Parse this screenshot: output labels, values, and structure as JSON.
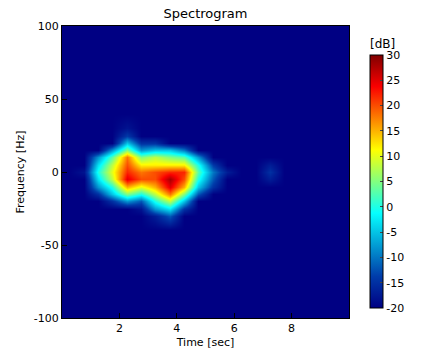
{
  "chart_data": {
    "type": "heatmap",
    "title": "Spectrogram",
    "x_label": "Time [sec]",
    "y_label": "Frequency [Hz]",
    "x": [
      0.25,
      0.75,
      1.25,
      1.75,
      2.25,
      2.75,
      3.25,
      3.75,
      4.25,
      4.75,
      5.25,
      5.75,
      6.25,
      6.75,
      7.25,
      7.75,
      8.25,
      8.75,
      9.25,
      9.75
    ],
    "y": [
      -100,
      -80,
      -60,
      -40,
      -30,
      -25,
      -20,
      -15,
      -10,
      -5,
      0,
      5,
      10,
      15,
      20,
      25,
      30,
      40,
      60,
      80,
      100
    ],
    "cells": [
      [
        -20,
        -20,
        -20,
        -20,
        -20,
        -20,
        -20,
        -20,
        -20,
        -20,
        -20,
        -20,
        -20,
        -20,
        -20,
        -20,
        -20,
        -20,
        -20,
        -20
      ],
      [
        -20,
        -20,
        -20,
        -20,
        -20,
        -20,
        -20,
        -20,
        -20,
        -20,
        -20,
        -20,
        -20,
        -20,
        -20,
        -20,
        -20,
        -20,
        -20,
        -20
      ],
      [
        -20,
        -20,
        -20,
        -20,
        -20,
        -20,
        -20,
        -20,
        -20,
        -20,
        -20,
        -20,
        -20,
        -20,
        -20,
        -20,
        -20,
        -20,
        -20,
        -20
      ],
      [
        -20,
        -20,
        -20,
        -20,
        -20,
        -20,
        -20,
        -20,
        -20,
        -20,
        -20,
        -20,
        -20,
        -20,
        -20,
        -20,
        -20,
        -20,
        -20,
        -20
      ],
      [
        -20,
        -20,
        -20,
        -20,
        -20,
        -20,
        -17,
        -12,
        -20,
        -20,
        -20,
        -20,
        -20,
        -20,
        -20,
        -20,
        -20,
        -20,
        -20,
        -20
      ],
      [
        -20,
        -20,
        -20,
        -20,
        -20,
        -18,
        -8,
        -3,
        -15,
        -20,
        -20,
        -20,
        -20,
        -20,
        -20,
        -20,
        -20,
        -20,
        -20,
        -20
      ],
      [
        -20,
        -20,
        -20,
        -15,
        -8,
        -12,
        0,
        8,
        -5,
        -20,
        -20,
        -20,
        -20,
        -20,
        -20,
        -20,
        -20,
        -20,
        -20,
        -20
      ],
      [
        -20,
        -20,
        -15,
        -5,
        5,
        0,
        8,
        18,
        5,
        -12,
        -20,
        -20,
        -20,
        -20,
        -20,
        -20,
        -20,
        -20,
        -20,
        -20
      ],
      [
        -20,
        -20,
        -8,
        0,
        15,
        10,
        15,
        25,
        15,
        -5,
        -15,
        -20,
        -20,
        -20,
        -20,
        -20,
        -20,
        -20,
        -20,
        -20
      ],
      [
        -20,
        -20,
        -3,
        8,
        25,
        20,
        20,
        28,
        20,
        0,
        -12,
        -20,
        -20,
        -20,
        -17,
        -20,
        -20,
        -20,
        -20,
        -20
      ],
      [
        -20,
        -18,
        0,
        10,
        22,
        18,
        20,
        22,
        22,
        3,
        -10,
        -17,
        -20,
        -20,
        -15,
        -20,
        -20,
        -20,
        -20,
        -20
      ],
      [
        -20,
        -20,
        -3,
        8,
        20,
        12,
        12,
        12,
        12,
        0,
        -14,
        -20,
        -20,
        -20,
        -17,
        -20,
        -20,
        -20,
        -20,
        -20
      ],
      [
        -20,
        -20,
        -8,
        3,
        18,
        5,
        8,
        5,
        3,
        -8,
        -20,
        -20,
        -20,
        -20,
        -20,
        -20,
        -20,
        -20,
        -20,
        -20
      ],
      [
        -20,
        -20,
        -20,
        -8,
        5,
        -8,
        -5,
        -5,
        -10,
        -20,
        -20,
        -20,
        -20,
        -20,
        -20,
        -20,
        -20,
        -20,
        -20,
        -20
      ],
      [
        -20,
        -20,
        -20,
        -20,
        -5,
        -15,
        -15,
        -20,
        -20,
        -20,
        -20,
        -20,
        -20,
        -20,
        -20,
        -20,
        -20,
        -20,
        -20,
        -20
      ],
      [
        -20,
        -20,
        -20,
        -20,
        -14,
        -20,
        -20,
        -20,
        -20,
        -20,
        -20,
        -20,
        -20,
        -20,
        -20,
        -20,
        -20,
        -20,
        -20,
        -20
      ],
      [
        -20,
        -20,
        -20,
        -20,
        -18,
        -20,
        -20,
        -20,
        -20,
        -20,
        -20,
        -20,
        -20,
        -20,
        -20,
        -20,
        -20,
        -20,
        -20,
        -20
      ],
      [
        -20,
        -20,
        -20,
        -20,
        -20,
        -20,
        -20,
        -20,
        -20,
        -20,
        -20,
        -20,
        -20,
        -20,
        -20,
        -20,
        -20,
        -20,
        -20,
        -20
      ],
      [
        -20,
        -20,
        -20,
        -20,
        -20,
        -20,
        -20,
        -20,
        -20,
        -20,
        -20,
        -20,
        -20,
        -20,
        -20,
        -20,
        -20,
        -20,
        -20,
        -20
      ],
      [
        -20,
        -20,
        -20,
        -20,
        -20,
        -20,
        -20,
        -20,
        -20,
        -20,
        -20,
        -20,
        -20,
        -20,
        -20,
        -20,
        -20,
        -20,
        -20,
        -20
      ],
      [
        -20,
        -20,
        -20,
        -20,
        -20,
        -20,
        -20,
        -20,
        -20,
        -20,
        -20,
        -20,
        -20,
        -20,
        -20,
        -20,
        -20,
        -20,
        -20,
        -20
      ]
    ],
    "color": "Jet",
    "xlim": [
      0,
      10
    ],
    "xticks": [
      2,
      4,
      6,
      8
    ],
    "ylim": [
      -100,
      100
    ],
    "yticks": [
      -100,
      -50,
      0,
      50,
      100
    ],
    "colorbar_title": "[dB]",
    "colorbar_range": [
      -20,
      30
    ],
    "colorbar_ticks": [
      -20,
      -15,
      -10,
      -5,
      0,
      5,
      10,
      15,
      20,
      25,
      30
    ],
    "grid": false
  }
}
